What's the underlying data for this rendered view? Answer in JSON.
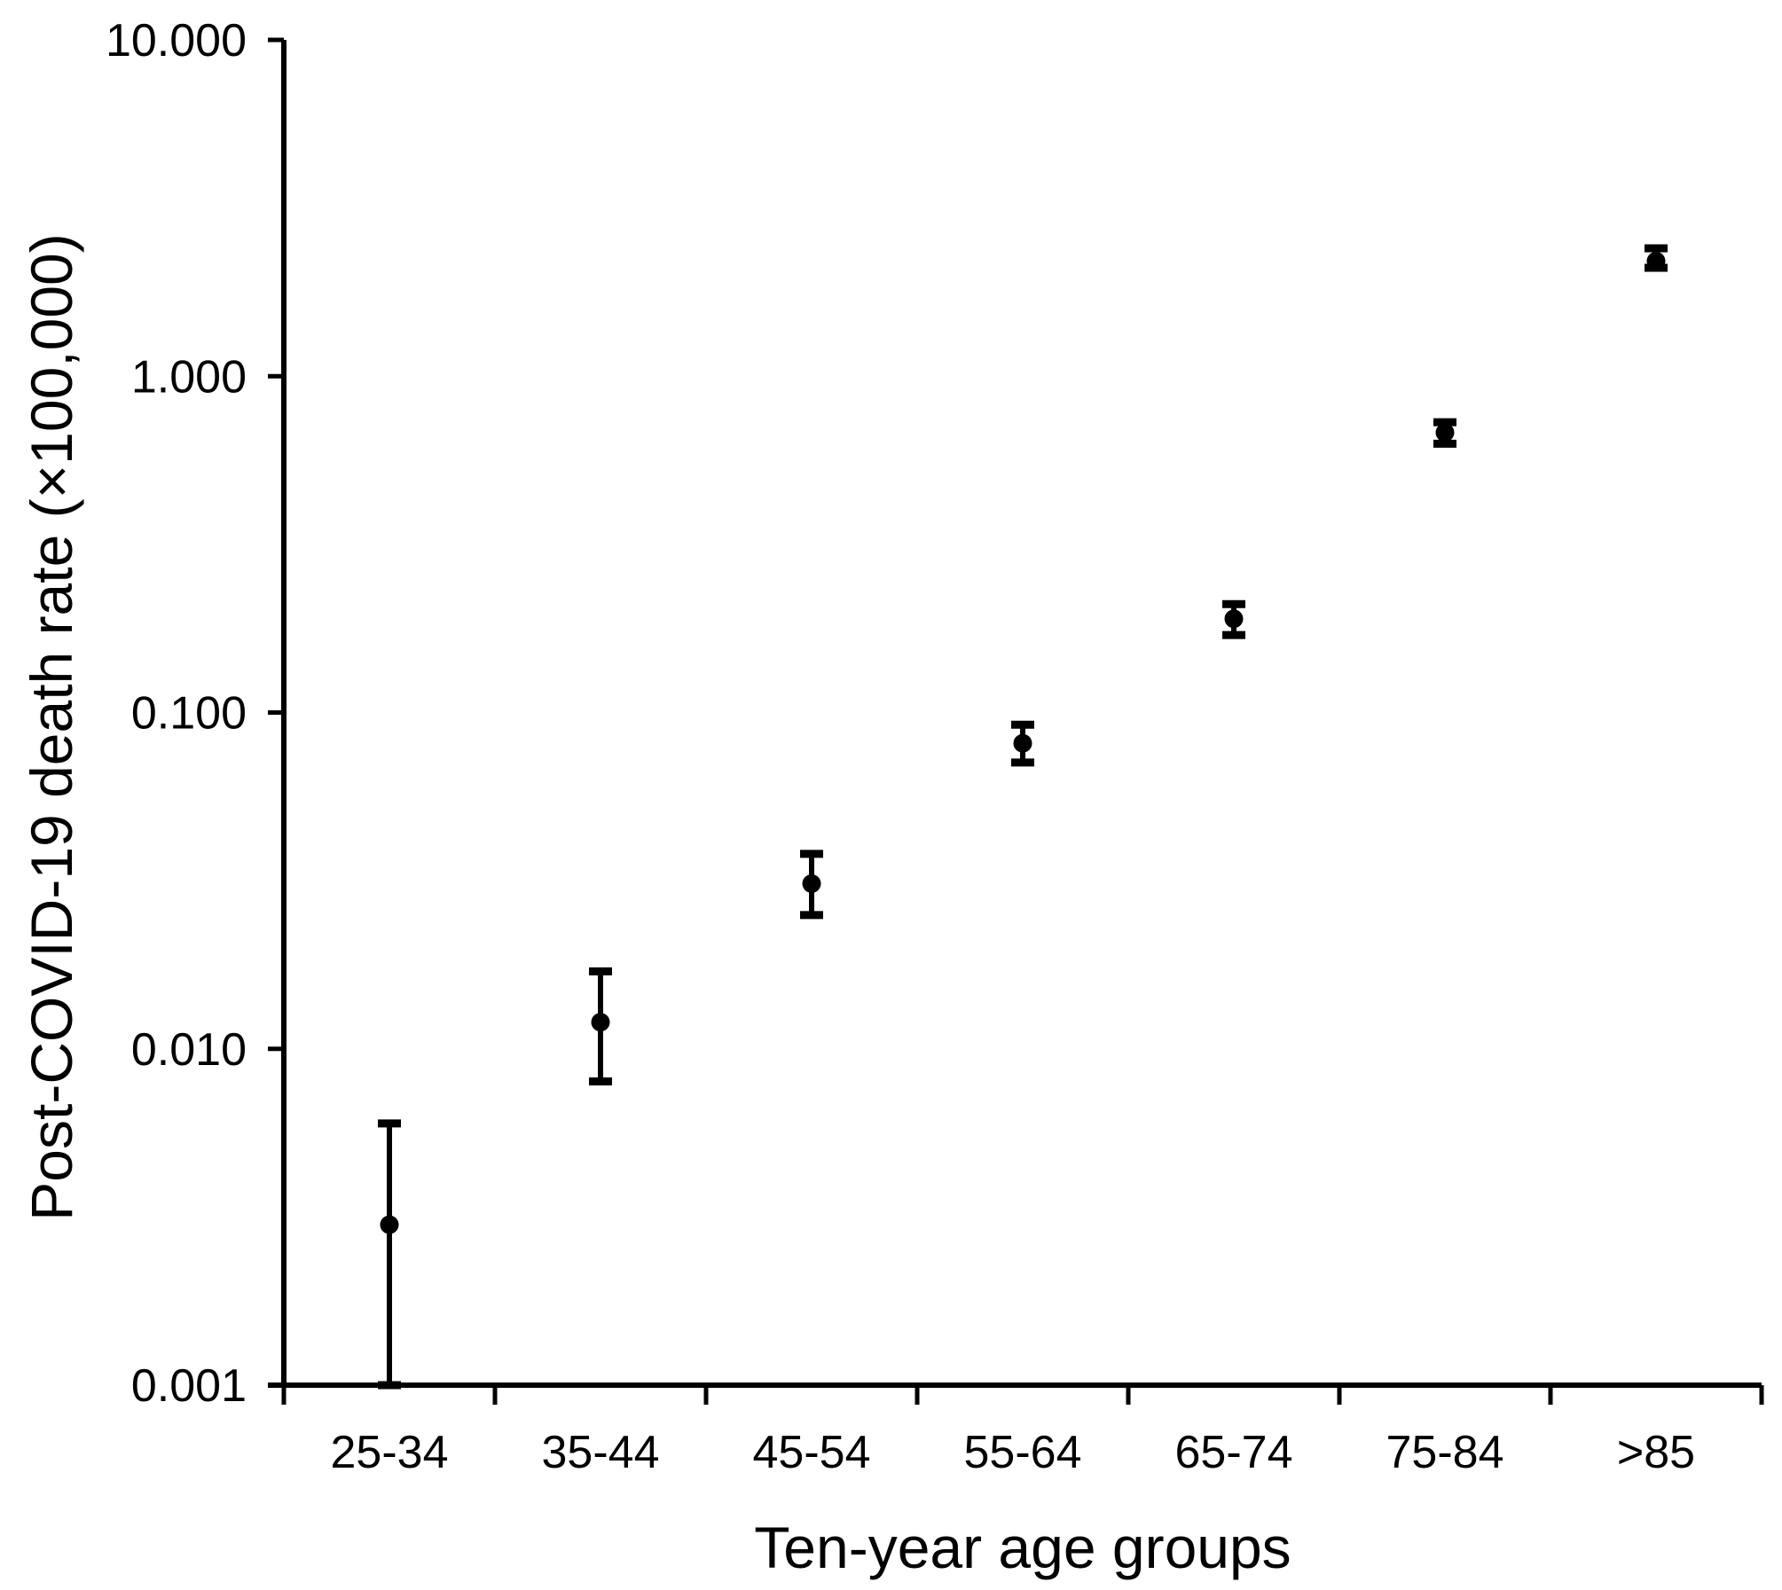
{
  "figure": {
    "background": "#ffffff",
    "ink_color": "#000000"
  },
  "chart_data": {
    "type": "scatter",
    "subtype": "dot-plot-with-error-bars",
    "title": "",
    "xlabel": "Ten-year age groups",
    "ylabel": "Post-COVID-19 death rate (×100,000)",
    "categories": [
      "25-34",
      "35-44",
      "45-54",
      "55-64",
      "65-74",
      "75-84",
      ">85"
    ],
    "series": [
      {
        "name": "Post-COVID-19 death rate",
        "values": [
          0.003,
          0.012,
          0.031,
          0.081,
          0.19,
          0.68,
          2.2
        ],
        "ci_lower": [
          0.001,
          0.008,
          0.025,
          0.071,
          0.17,
          0.63,
          2.1
        ],
        "ci_upper": [
          0.006,
          0.017,
          0.038,
          0.092,
          0.21,
          0.73,
          2.4
        ]
      }
    ],
    "y_scale": "log",
    "ylim": [
      0.001,
      10
    ],
    "yticks": [
      {
        "value": 10,
        "label": "10.000"
      },
      {
        "value": 1,
        "label": "1.000"
      },
      {
        "value": 0.1,
        "label": "0.100"
      },
      {
        "value": 0.01,
        "label": "0.010"
      },
      {
        "value": 0.001,
        "label": "0.001"
      }
    ],
    "grid": false,
    "legend": false,
    "marker": "filled-circle"
  }
}
